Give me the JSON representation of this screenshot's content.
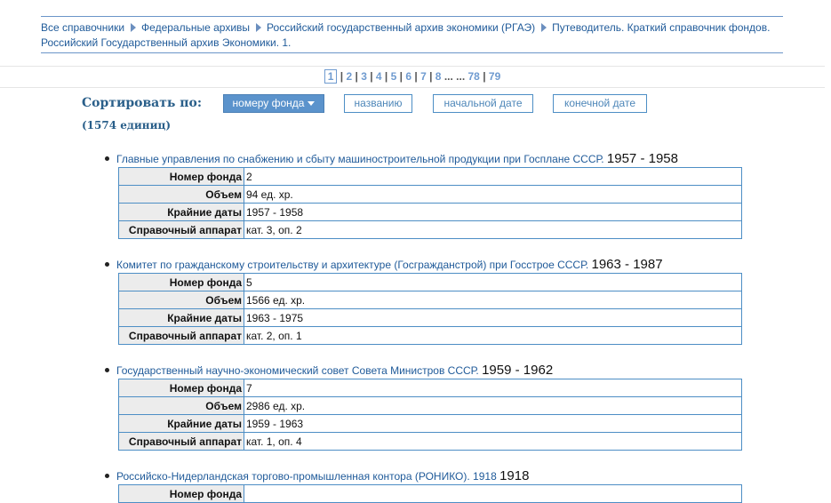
{
  "breadcrumb": [
    "Все справочники",
    "Федеральные архивы",
    "Российский государственный архив экономики (РГАЭ)",
    "Путеводитель. Краткий справочник фондов. Российский Государственный архив Экономики. 1."
  ],
  "pagination": {
    "current": "1",
    "pages": [
      "2",
      "3",
      "4",
      "5",
      "6",
      "7",
      "8"
    ],
    "ellipsis": "... ...",
    "last": [
      "78",
      "79"
    ]
  },
  "sort": {
    "label": "Сортировать по:",
    "options": [
      "номеру фонда",
      "названию",
      "начальной дате",
      "конечной дате"
    ],
    "active": "номеру фонда"
  },
  "count": "(1574 единиц)",
  "fields": [
    "Номер фонда",
    "Объем",
    "Крайние даты",
    "Справочный аппарат"
  ],
  "entries": [
    {
      "title": "Главные управления по снабжению и сбыту машиностроительной продукции при Госплане СССР.",
      "years": "1957 - 1958",
      "values": [
        "2",
        "94 ед. хр.",
        "1957 - 1958",
        "кат. 3, оп. 2"
      ]
    },
    {
      "title": "Комитет по гражданскому строительству и архитектуре (Госгражданстрой) при Госстрое СССР.",
      "years": "1963 - 1987",
      "values": [
        "5",
        "1566 ед. хр.",
        "1963 - 1975",
        "кат. 2, оп. 1"
      ]
    },
    {
      "title": "Государственный научно-экономический совет Совета Министров СССР.",
      "years": "1959 - 1962",
      "values": [
        "7",
        "2986 ед. хр.",
        "1959 - 1963",
        "кат. 1, оп. 4"
      ]
    },
    {
      "title": "Российско-Нидерландская торгово-промышленная контора (РОНИКО). 1918",
      "years": "1918",
      "values": []
    }
  ]
}
